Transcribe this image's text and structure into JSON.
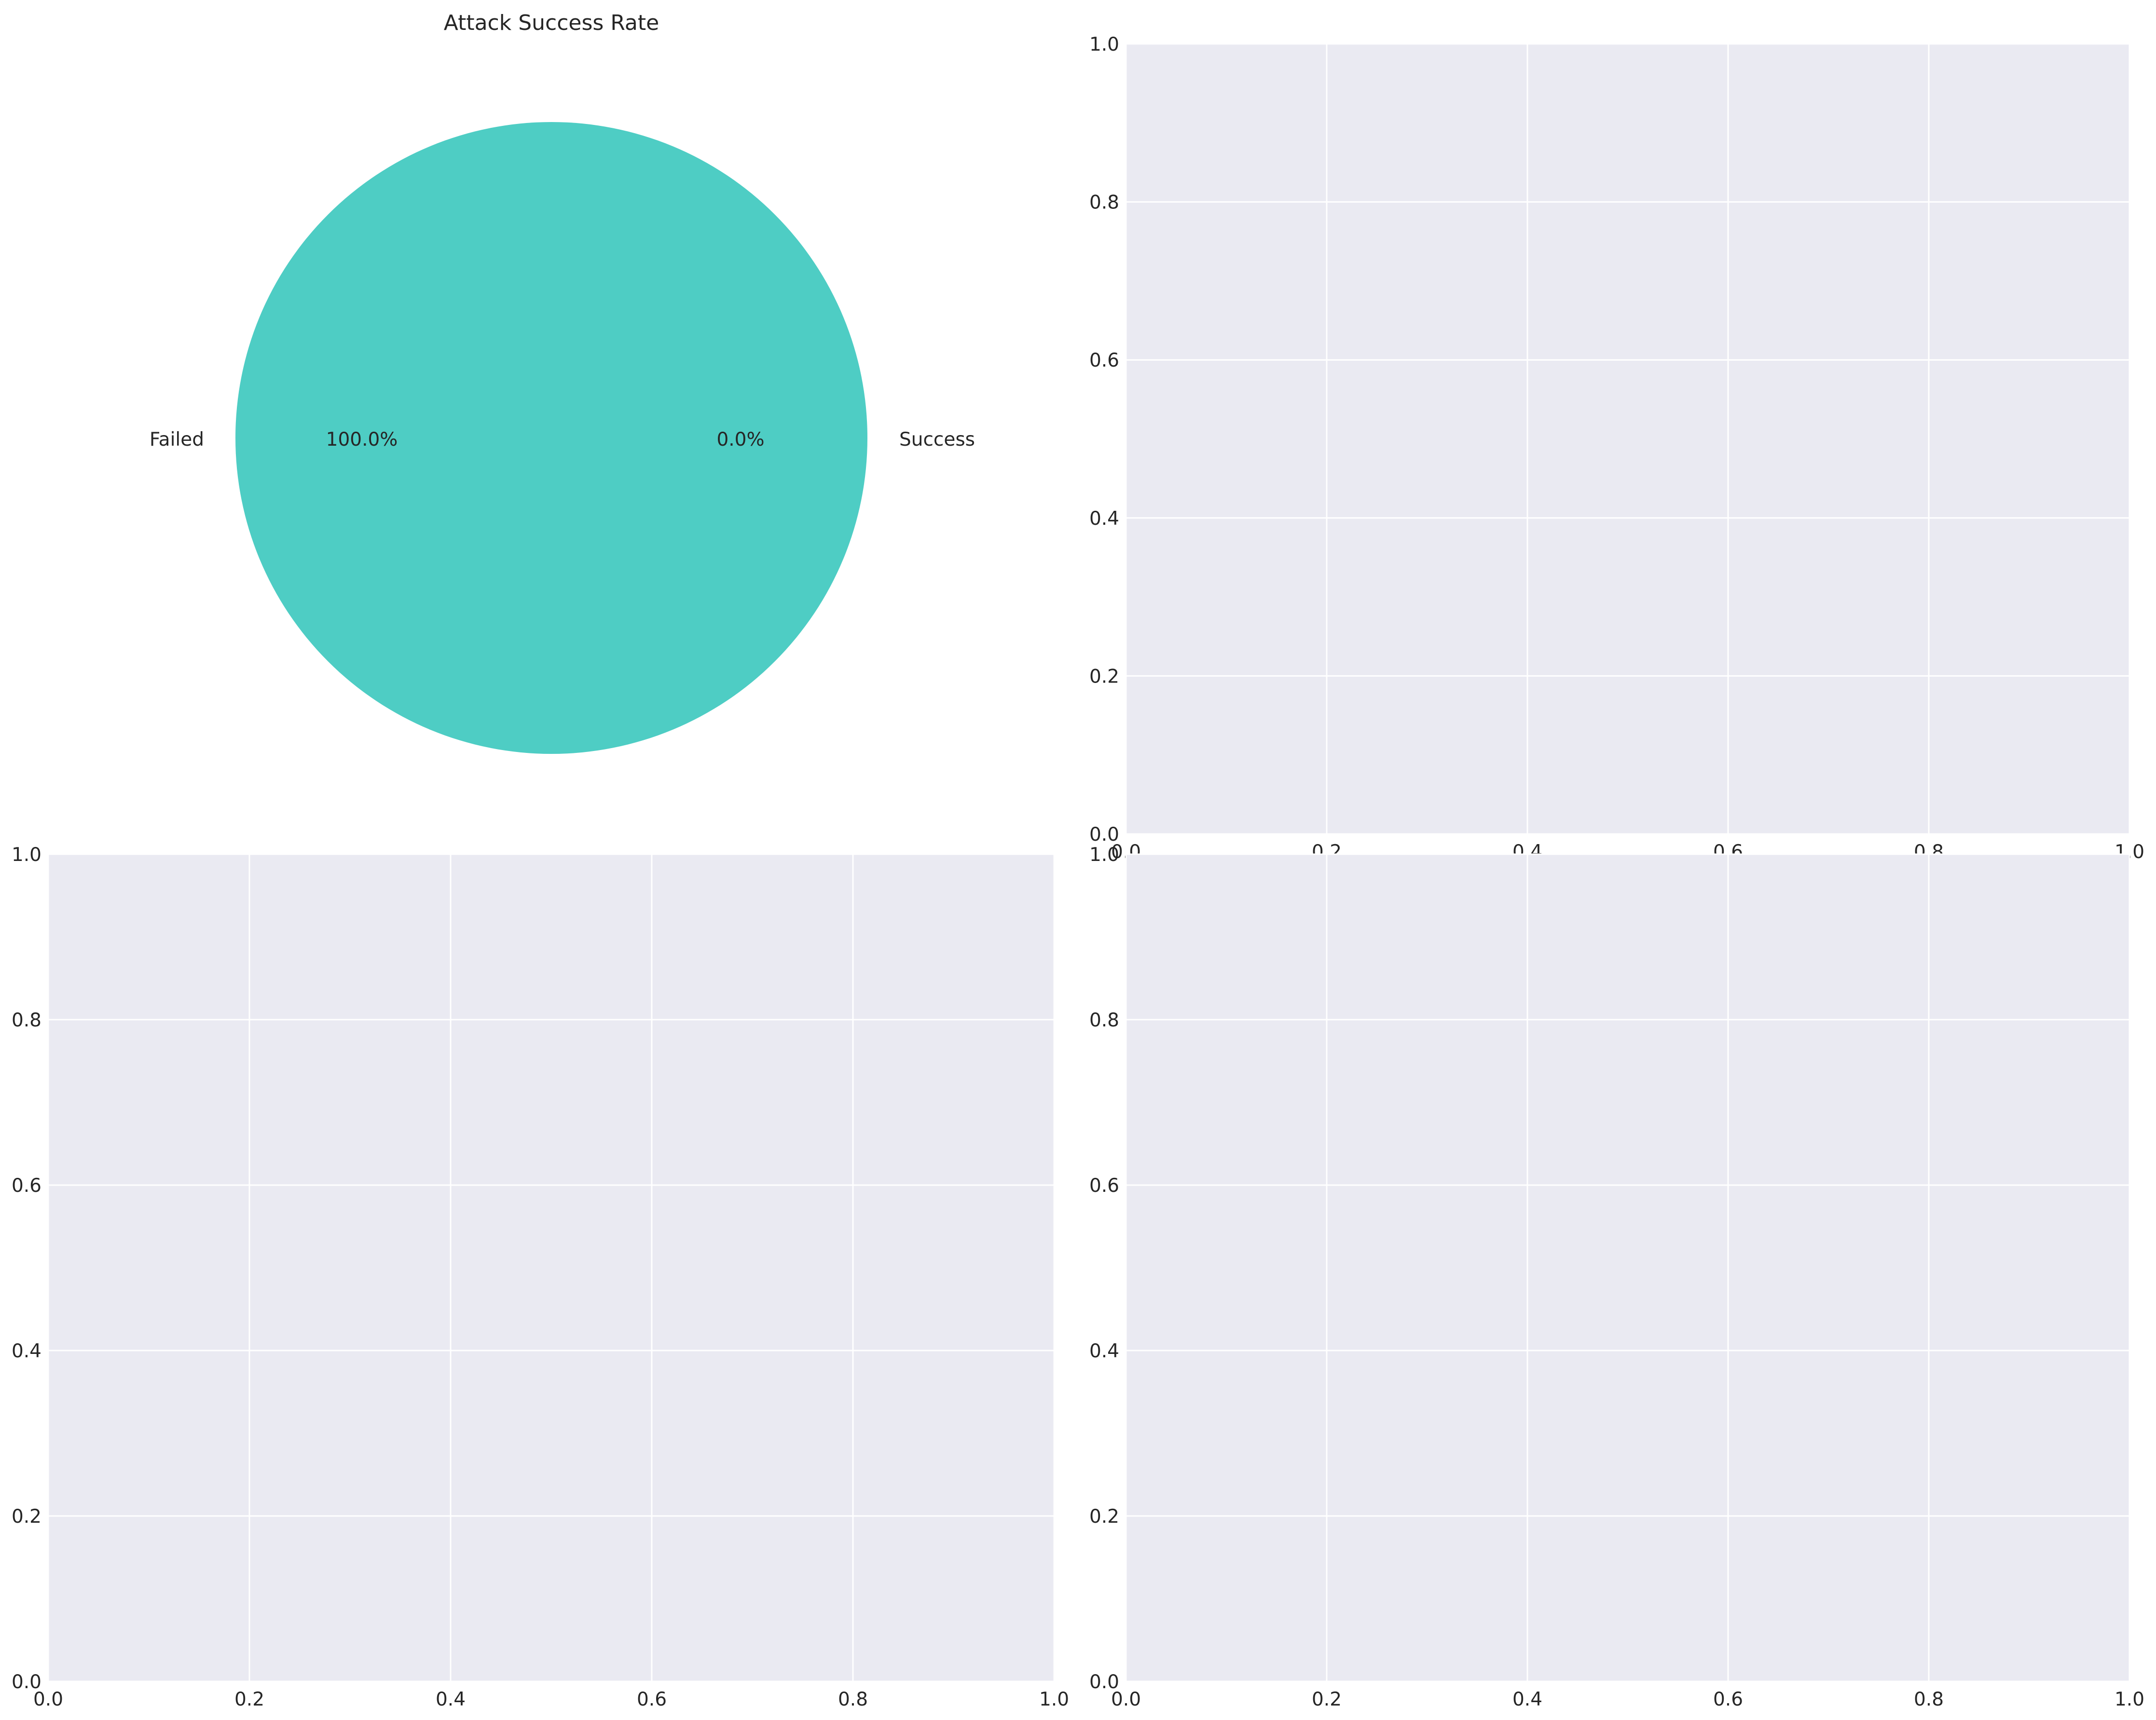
{
  "chart_data": [
    {
      "type": "pie",
      "title": "Attack Success Rate",
      "slices": [
        {
          "label": "Success",
          "value": 0,
          "pct_label": "0.0%",
          "color": "#FF6B6B"
        },
        {
          "label": "Failed",
          "value": 100,
          "pct_label": "100.0%",
          "color": "#4ECDC4"
        }
      ]
    },
    {
      "type": "scatter",
      "title": "",
      "xlabel": "",
      "ylabel": "",
      "xlim": [
        0,
        1
      ],
      "ylim": [
        0,
        1
      ],
      "xticks": [
        "0.0",
        "0.2",
        "0.4",
        "0.6",
        "0.8",
        "1.0"
      ],
      "yticks": [
        "0.0",
        "0.2",
        "0.4",
        "0.6",
        "0.8",
        "1.0"
      ],
      "grid": true,
      "series": []
    },
    {
      "type": "scatter",
      "title": "",
      "xlabel": "",
      "ylabel": "",
      "xlim": [
        0,
        1
      ],
      "ylim": [
        0,
        1
      ],
      "xticks": [
        "0.0",
        "0.2",
        "0.4",
        "0.6",
        "0.8",
        "1.0"
      ],
      "yticks": [
        "0.0",
        "0.2",
        "0.4",
        "0.6",
        "0.8",
        "1.0"
      ],
      "grid": true,
      "series": []
    },
    {
      "type": "scatter",
      "title": "",
      "xlabel": "",
      "ylabel": "",
      "xlim": [
        0,
        1
      ],
      "ylim": [
        0,
        1
      ],
      "xticks": [
        "0.0",
        "0.2",
        "0.4",
        "0.6",
        "0.8",
        "1.0"
      ],
      "yticks": [
        "0.0",
        "0.2",
        "0.4",
        "0.6",
        "0.8",
        "1.0"
      ],
      "grid": true,
      "series": []
    }
  ],
  "style": {
    "axes_facecolor": "#EAEAF2",
    "grid_color": "#FFFFFF",
    "text_color": "#262626"
  }
}
